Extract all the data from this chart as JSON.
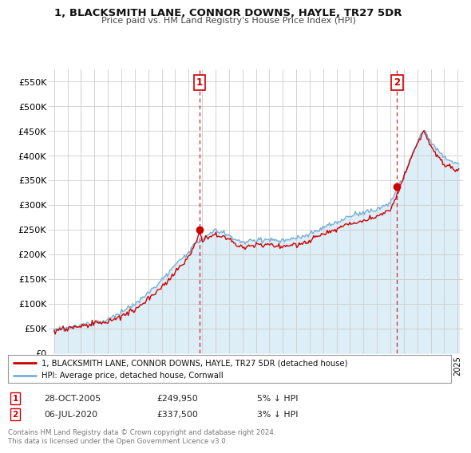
{
  "title": "1, BLACKSMITH LANE, CONNOR DOWNS, HAYLE, TR27 5DR",
  "subtitle": "Price paid vs. HM Land Registry's House Price Index (HPI)",
  "ylim": [
    0,
    575000
  ],
  "yticks": [
    0,
    50000,
    100000,
    150000,
    200000,
    250000,
    300000,
    350000,
    400000,
    450000,
    500000,
    550000
  ],
  "ytick_labels": [
    "£0",
    "£50K",
    "£100K",
    "£150K",
    "£200K",
    "£250K",
    "£300K",
    "£350K",
    "£400K",
    "£450K",
    "£500K",
    "£550K"
  ],
  "sale1_year": 2005.82,
  "sale1_price": 249950,
  "sale1_label": "1",
  "sale1_date": "28-OCT-2005",
  "sale1_text": "£249,950",
  "sale1_pct": "5% ↓ HPI",
  "sale2_year": 2020.5,
  "sale2_price": 337500,
  "sale2_label": "2",
  "sale2_date": "06-JUL-2020",
  "sale2_text": "£337,500",
  "sale2_pct": "3% ↓ HPI",
  "legend_line1": "1, BLACKSMITH LANE, CONNOR DOWNS, HAYLE, TR27 5DR (detached house)",
  "legend_line2": "HPI: Average price, detached house, Cornwall",
  "footer": "Contains HM Land Registry data © Crown copyright and database right 2024.\nThis data is licensed under the Open Government Licence v3.0.",
  "line_red": "#cc0000",
  "line_blue": "#7ab0d4",
  "fill_blue": "#ddeef7",
  "background": "#ffffff",
  "grid_color": "#cccccc"
}
